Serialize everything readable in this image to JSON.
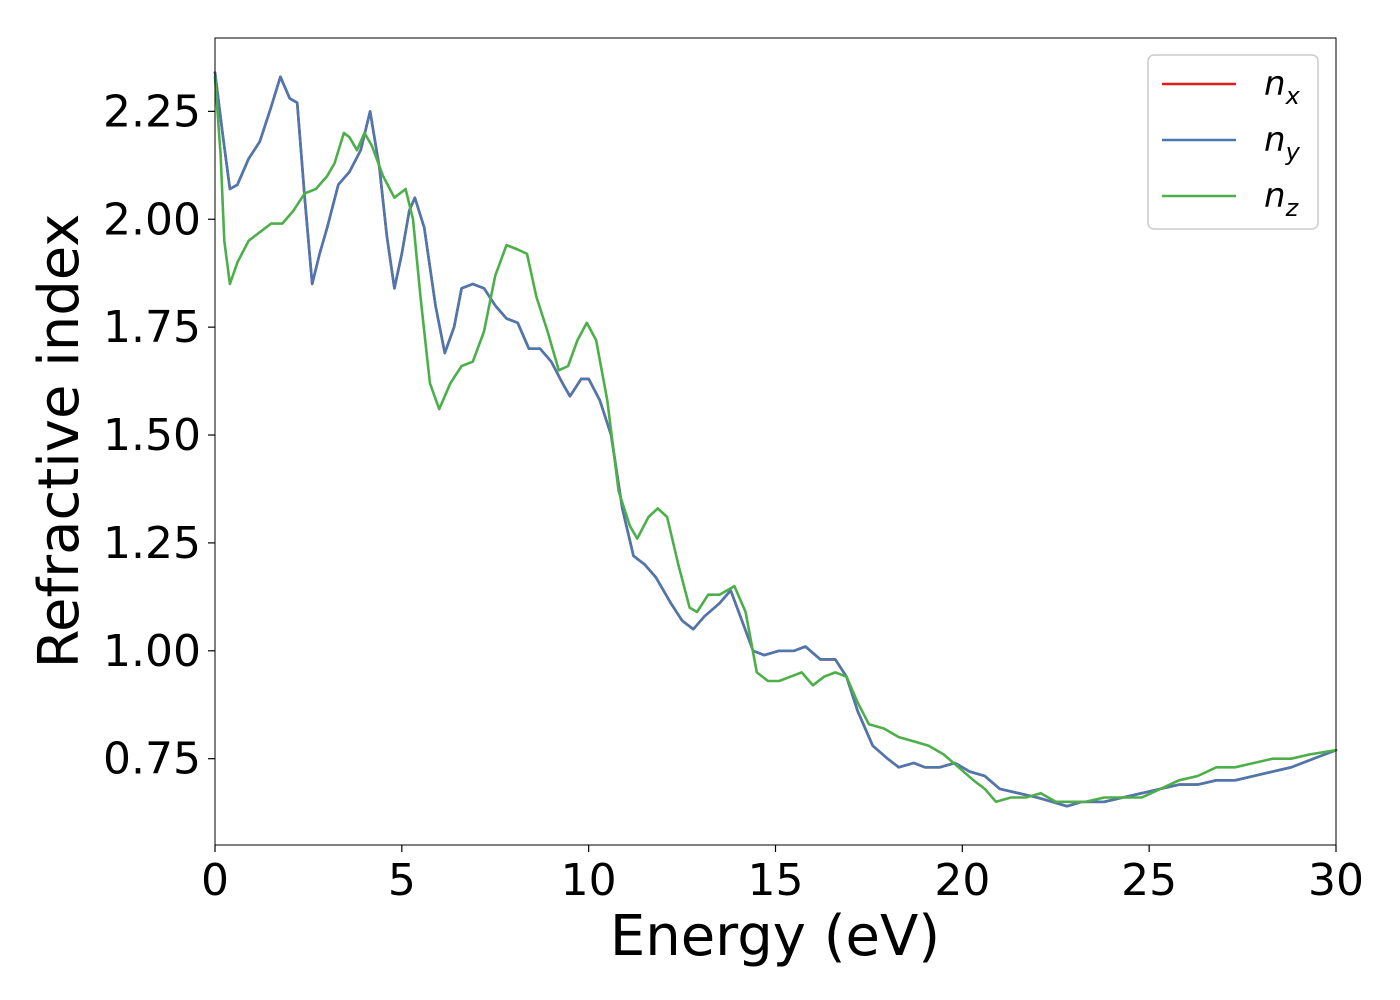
{
  "chart_data": {
    "type": "line",
    "xlabel": "Energy (eV)",
    "ylabel": "Refractive index",
    "xlim": [
      0,
      30
    ],
    "ylim": [
      0.55,
      2.42
    ],
    "xticks": [
      0,
      5,
      10,
      15,
      20,
      25,
      30
    ],
    "xtick_labels": [
      "0",
      "5",
      "10",
      "15",
      "20",
      "25",
      "30"
    ],
    "yticks": [
      0.75,
      1.0,
      1.25,
      1.5,
      1.75,
      2.0,
      2.25
    ],
    "ytick_labels": [
      "0.75",
      "1.00",
      "1.25",
      "1.50",
      "1.75",
      "2.00",
      "2.25"
    ],
    "grid": false,
    "legend_position": "top-right",
    "series": [
      {
        "name": "n_x",
        "label_base": "n",
        "label_sub": "x",
        "color": "#e41a1c",
        "points": [
          [
            0,
            2.34
          ],
          [
            0.2,
            2.2
          ],
          [
            0.4,
            2.07
          ],
          [
            0.6,
            2.08
          ],
          [
            0.9,
            2.14
          ],
          [
            1.2,
            2.18
          ],
          [
            1.5,
            2.26
          ],
          [
            1.75,
            2.33
          ],
          [
            2.0,
            2.28
          ],
          [
            2.2,
            2.27
          ],
          [
            2.4,
            2.05
          ],
          [
            2.6,
            1.85
          ],
          [
            2.8,
            1.92
          ],
          [
            3.0,
            1.98
          ],
          [
            3.3,
            2.08
          ],
          [
            3.6,
            2.11
          ],
          [
            3.9,
            2.16
          ],
          [
            4.15,
            2.25
          ],
          [
            4.4,
            2.12
          ],
          [
            4.6,
            1.96
          ],
          [
            4.8,
            1.84
          ],
          [
            5.0,
            1.92
          ],
          [
            5.2,
            2.02
          ],
          [
            5.35,
            2.05
          ],
          [
            5.6,
            1.98
          ],
          [
            5.9,
            1.8
          ],
          [
            6.15,
            1.69
          ],
          [
            6.4,
            1.75
          ],
          [
            6.6,
            1.84
          ],
          [
            6.9,
            1.85
          ],
          [
            7.2,
            1.84
          ],
          [
            7.5,
            1.8
          ],
          [
            7.8,
            1.77
          ],
          [
            8.1,
            1.76
          ],
          [
            8.4,
            1.7
          ],
          [
            8.7,
            1.7
          ],
          [
            9.0,
            1.67
          ],
          [
            9.3,
            1.62
          ],
          [
            9.5,
            1.59
          ],
          [
            9.8,
            1.63
          ],
          [
            10.0,
            1.63
          ],
          [
            10.3,
            1.58
          ],
          [
            10.6,
            1.5
          ],
          [
            10.9,
            1.33
          ],
          [
            11.2,
            1.22
          ],
          [
            11.5,
            1.2
          ],
          [
            11.8,
            1.17
          ],
          [
            12.2,
            1.11
          ],
          [
            12.5,
            1.07
          ],
          [
            12.8,
            1.05
          ],
          [
            13.1,
            1.08
          ],
          [
            13.5,
            1.11
          ],
          [
            13.8,
            1.14
          ],
          [
            14.1,
            1.07
          ],
          [
            14.4,
            1.0
          ],
          [
            14.7,
            0.99
          ],
          [
            15.1,
            1.0
          ],
          [
            15.5,
            1.0
          ],
          [
            15.8,
            1.01
          ],
          [
            16.2,
            0.98
          ],
          [
            16.6,
            0.98
          ],
          [
            16.9,
            0.94
          ],
          [
            17.2,
            0.86
          ],
          [
            17.6,
            0.78
          ],
          [
            18.0,
            0.75
          ],
          [
            18.3,
            0.73
          ],
          [
            18.7,
            0.74
          ],
          [
            19.0,
            0.73
          ],
          [
            19.4,
            0.73
          ],
          [
            19.8,
            0.74
          ],
          [
            20.2,
            0.72
          ],
          [
            20.6,
            0.71
          ],
          [
            21.0,
            0.68
          ],
          [
            21.5,
            0.67
          ],
          [
            22.0,
            0.66
          ],
          [
            22.4,
            0.65
          ],
          [
            22.8,
            0.64
          ],
          [
            23.2,
            0.65
          ],
          [
            23.8,
            0.65
          ],
          [
            24.3,
            0.66
          ],
          [
            24.8,
            0.67
          ],
          [
            25.3,
            0.68
          ],
          [
            25.8,
            0.69
          ],
          [
            26.3,
            0.69
          ],
          [
            26.8,
            0.7
          ],
          [
            27.3,
            0.7
          ],
          [
            27.8,
            0.71
          ],
          [
            28.3,
            0.72
          ],
          [
            28.8,
            0.73
          ],
          [
            29.4,
            0.75
          ],
          [
            30.0,
            0.77
          ]
        ]
      },
      {
        "name": "n_y",
        "label_base": "n",
        "label_sub": "y",
        "color": "#4c78b0",
        "points": [
          [
            0,
            2.34
          ],
          [
            0.2,
            2.2
          ],
          [
            0.4,
            2.07
          ],
          [
            0.6,
            2.08
          ],
          [
            0.9,
            2.14
          ],
          [
            1.2,
            2.18
          ],
          [
            1.5,
            2.26
          ],
          [
            1.75,
            2.33
          ],
          [
            2.0,
            2.28
          ],
          [
            2.2,
            2.27
          ],
          [
            2.4,
            2.05
          ],
          [
            2.6,
            1.85
          ],
          [
            2.8,
            1.92
          ],
          [
            3.0,
            1.98
          ],
          [
            3.3,
            2.08
          ],
          [
            3.6,
            2.11
          ],
          [
            3.9,
            2.16
          ],
          [
            4.15,
            2.25
          ],
          [
            4.4,
            2.12
          ],
          [
            4.6,
            1.96
          ],
          [
            4.8,
            1.84
          ],
          [
            5.0,
            1.92
          ],
          [
            5.2,
            2.02
          ],
          [
            5.35,
            2.05
          ],
          [
            5.6,
            1.98
          ],
          [
            5.9,
            1.8
          ],
          [
            6.15,
            1.69
          ],
          [
            6.4,
            1.75
          ],
          [
            6.6,
            1.84
          ],
          [
            6.9,
            1.85
          ],
          [
            7.2,
            1.84
          ],
          [
            7.5,
            1.8
          ],
          [
            7.8,
            1.77
          ],
          [
            8.1,
            1.76
          ],
          [
            8.4,
            1.7
          ],
          [
            8.7,
            1.7
          ],
          [
            9.0,
            1.67
          ],
          [
            9.3,
            1.62
          ],
          [
            9.5,
            1.59
          ],
          [
            9.8,
            1.63
          ],
          [
            10.0,
            1.63
          ],
          [
            10.3,
            1.58
          ],
          [
            10.6,
            1.5
          ],
          [
            10.9,
            1.33
          ],
          [
            11.2,
            1.22
          ],
          [
            11.5,
            1.2
          ],
          [
            11.8,
            1.17
          ],
          [
            12.2,
            1.11
          ],
          [
            12.5,
            1.07
          ],
          [
            12.8,
            1.05
          ],
          [
            13.1,
            1.08
          ],
          [
            13.5,
            1.11
          ],
          [
            13.8,
            1.14
          ],
          [
            14.1,
            1.07
          ],
          [
            14.4,
            1.0
          ],
          [
            14.7,
            0.99
          ],
          [
            15.1,
            1.0
          ],
          [
            15.5,
            1.0
          ],
          [
            15.8,
            1.01
          ],
          [
            16.2,
            0.98
          ],
          [
            16.6,
            0.98
          ],
          [
            16.9,
            0.94
          ],
          [
            17.2,
            0.86
          ],
          [
            17.6,
            0.78
          ],
          [
            18.0,
            0.75
          ],
          [
            18.3,
            0.73
          ],
          [
            18.7,
            0.74
          ],
          [
            19.0,
            0.73
          ],
          [
            19.4,
            0.73
          ],
          [
            19.8,
            0.74
          ],
          [
            20.2,
            0.72
          ],
          [
            20.6,
            0.71
          ],
          [
            21.0,
            0.68
          ],
          [
            21.5,
            0.67
          ],
          [
            22.0,
            0.66
          ],
          [
            22.4,
            0.65
          ],
          [
            22.8,
            0.64
          ],
          [
            23.2,
            0.65
          ],
          [
            23.8,
            0.65
          ],
          [
            24.3,
            0.66
          ],
          [
            24.8,
            0.67
          ],
          [
            25.3,
            0.68
          ],
          [
            25.8,
            0.69
          ],
          [
            26.3,
            0.69
          ],
          [
            26.8,
            0.7
          ],
          [
            27.3,
            0.7
          ],
          [
            27.8,
            0.71
          ],
          [
            28.3,
            0.72
          ],
          [
            28.8,
            0.73
          ],
          [
            29.4,
            0.75
          ],
          [
            30.0,
            0.77
          ]
        ]
      },
      {
        "name": "n_z",
        "label_base": "n",
        "label_sub": "z",
        "color": "#4daf4a",
        "points": [
          [
            0,
            2.33
          ],
          [
            0.15,
            2.15
          ],
          [
            0.25,
            1.95
          ],
          [
            0.4,
            1.85
          ],
          [
            0.6,
            1.9
          ],
          [
            0.9,
            1.95
          ],
          [
            1.2,
            1.97
          ],
          [
            1.5,
            1.99
          ],
          [
            1.8,
            1.99
          ],
          [
            2.1,
            2.02
          ],
          [
            2.4,
            2.06
          ],
          [
            2.7,
            2.07
          ],
          [
            3.0,
            2.1
          ],
          [
            3.2,
            2.13
          ],
          [
            3.45,
            2.2
          ],
          [
            3.6,
            2.19
          ],
          [
            3.8,
            2.16
          ],
          [
            4.0,
            2.2
          ],
          [
            4.2,
            2.17
          ],
          [
            4.5,
            2.1
          ],
          [
            4.8,
            2.05
          ],
          [
            5.1,
            2.07
          ],
          [
            5.3,
            2.0
          ],
          [
            5.5,
            1.82
          ],
          [
            5.75,
            1.62
          ],
          [
            6.0,
            1.56
          ],
          [
            6.3,
            1.62
          ],
          [
            6.6,
            1.66
          ],
          [
            6.9,
            1.67
          ],
          [
            7.2,
            1.74
          ],
          [
            7.5,
            1.87
          ],
          [
            7.8,
            1.94
          ],
          [
            8.1,
            1.93
          ],
          [
            8.35,
            1.92
          ],
          [
            8.6,
            1.82
          ],
          [
            8.9,
            1.74
          ],
          [
            9.2,
            1.65
          ],
          [
            9.45,
            1.66
          ],
          [
            9.7,
            1.72
          ],
          [
            9.95,
            1.76
          ],
          [
            10.2,
            1.72
          ],
          [
            10.5,
            1.58
          ],
          [
            10.8,
            1.37
          ],
          [
            11.1,
            1.29
          ],
          [
            11.3,
            1.26
          ],
          [
            11.6,
            1.31
          ],
          [
            11.85,
            1.33
          ],
          [
            12.1,
            1.31
          ],
          [
            12.4,
            1.2
          ],
          [
            12.7,
            1.1
          ],
          [
            12.9,
            1.09
          ],
          [
            13.2,
            1.13
          ],
          [
            13.5,
            1.13
          ],
          [
            13.9,
            1.15
          ],
          [
            14.2,
            1.09
          ],
          [
            14.5,
            0.95
          ],
          [
            14.8,
            0.93
          ],
          [
            15.1,
            0.93
          ],
          [
            15.4,
            0.94
          ],
          [
            15.7,
            0.95
          ],
          [
            16.0,
            0.92
          ],
          [
            16.3,
            0.94
          ],
          [
            16.6,
            0.95
          ],
          [
            16.9,
            0.94
          ],
          [
            17.2,
            0.88
          ],
          [
            17.5,
            0.83
          ],
          [
            17.9,
            0.82
          ],
          [
            18.3,
            0.8
          ],
          [
            18.7,
            0.79
          ],
          [
            19.1,
            0.78
          ],
          [
            19.5,
            0.76
          ],
          [
            19.9,
            0.73
          ],
          [
            20.3,
            0.7
          ],
          [
            20.6,
            0.68
          ],
          [
            20.9,
            0.65
          ],
          [
            21.3,
            0.66
          ],
          [
            21.7,
            0.66
          ],
          [
            22.1,
            0.67
          ],
          [
            22.5,
            0.65
          ],
          [
            22.9,
            0.65
          ],
          [
            23.3,
            0.65
          ],
          [
            23.8,
            0.66
          ],
          [
            24.3,
            0.66
          ],
          [
            24.8,
            0.66
          ],
          [
            25.3,
            0.68
          ],
          [
            25.8,
            0.7
          ],
          [
            26.3,
            0.71
          ],
          [
            26.8,
            0.73
          ],
          [
            27.3,
            0.73
          ],
          [
            27.8,
            0.74
          ],
          [
            28.3,
            0.75
          ],
          [
            28.8,
            0.75
          ],
          [
            29.3,
            0.76
          ],
          [
            30.0,
            0.77
          ]
        ]
      }
    ]
  }
}
